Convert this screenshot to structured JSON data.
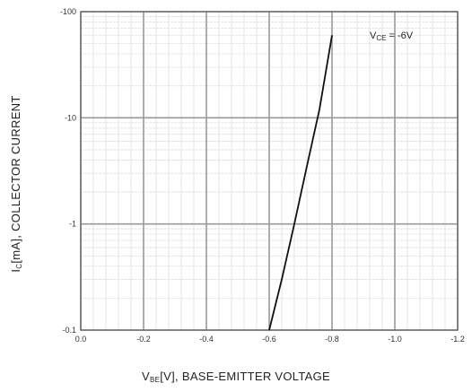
{
  "chart_data": {
    "type": "line",
    "title": "",
    "xlabel": {
      "main": "V",
      "sub": "BE",
      "rest": "[V], BASE-EMITTER VOLTAGE"
    },
    "ylabel": {
      "main": "I",
      "sub": "C",
      "rest": "[mA], COLLECTOR CURRENT"
    },
    "annotation": {
      "main": "V",
      "sub": "CE",
      "rest": " = -6V"
    },
    "xlim": [
      0.0,
      -1.2
    ],
    "ylim": [
      -0.1,
      -100
    ],
    "yscale": "log",
    "grid": true,
    "x_ticks": [
      {
        "value": 0.0,
        "label": "0.0"
      },
      {
        "value": -0.2,
        "label": "-0.2"
      },
      {
        "value": -0.4,
        "label": "-0.4"
      },
      {
        "value": -0.6,
        "label": "-0.6"
      },
      {
        "value": -0.8,
        "label": "-0.8"
      },
      {
        "value": -1.0,
        "label": "-1.0"
      },
      {
        "value": -1.2,
        "label": "-1.2"
      }
    ],
    "y_ticks": [
      {
        "value": -0.1,
        "label": "-0.1"
      },
      {
        "value": -1,
        "label": "-1"
      },
      {
        "value": -10,
        "label": "-10"
      },
      {
        "value": -100,
        "label": "-100"
      }
    ],
    "series": [
      {
        "x": [
          -0.6,
          -0.64,
          -0.68,
          -0.72,
          -0.76,
          -0.8
        ],
        "y": [
          -0.1,
          -0.3,
          -1.0,
          -3.5,
          -12,
          -60
        ]
      }
    ]
  }
}
